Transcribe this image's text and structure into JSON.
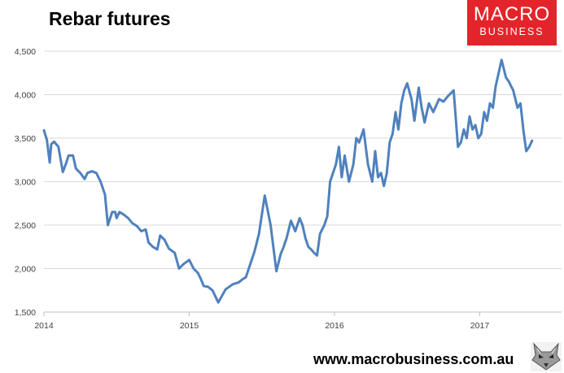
{
  "chart_data": {
    "type": "line",
    "title": "Rebar futures",
    "xlabel": "",
    "ylabel": "",
    "xlim": [
      2014,
      2017.4
    ],
    "ylim": [
      1500,
      4500
    ],
    "y_ticks": [
      1500,
      2000,
      2500,
      3000,
      3500,
      4000,
      4500
    ],
    "y_tick_labels": [
      "1,500",
      "2,000",
      "2,500",
      "3,000",
      "3,500",
      "4,000",
      "4,500"
    ],
    "x_ticks": [
      2014,
      2015,
      2016,
      2017
    ],
    "x_tick_labels": [
      "2014",
      "2015",
      "2016",
      "2017"
    ],
    "grid": true,
    "legend": "none",
    "series": [
      {
        "color": "#4f81bd",
        "x": [
          2014.0,
          2014.02,
          2014.04,
          2014.05,
          2014.07,
          2014.1,
          2014.13,
          2014.15,
          2014.17,
          2014.2,
          2014.22,
          2014.25,
          2014.28,
          2014.3,
          2014.33,
          2014.36,
          2014.39,
          2014.42,
          2014.44,
          2014.47,
          2014.49,
          2014.5,
          2014.52,
          2014.55,
          2014.58,
          2014.61,
          2014.64,
          2014.67,
          2014.7,
          2014.72,
          2014.75,
          2014.78,
          2014.8,
          2014.83,
          2014.86,
          2014.9,
          2014.93,
          2014.96,
          2015.0,
          2015.03,
          2015.06,
          2015.08,
          2015.1,
          2015.13,
          2015.16,
          2015.2,
          2015.25,
          2015.3,
          2015.34,
          2015.37,
          2015.39,
          2015.42,
          2015.45,
          2015.48,
          2015.52,
          2015.56,
          2015.6,
          2015.63,
          2015.65,
          2015.67,
          2015.7,
          2015.73,
          2015.76,
          2015.78,
          2015.8,
          2015.82,
          2015.84,
          2015.86,
          2015.88,
          2015.9,
          2015.93,
          2015.95,
          2015.97,
          2015.99,
          2016.01,
          2016.03,
          2016.05,
          2016.07,
          2016.1,
          2016.13,
          2016.15,
          2016.17,
          2016.2,
          2016.23,
          2016.26,
          2016.28,
          2016.3,
          2016.32,
          2016.34,
          2016.36,
          2016.38,
          2016.4,
          2016.42,
          2016.44,
          2016.46,
          2016.48,
          2016.5,
          2016.53,
          2016.55,
          2016.58,
          2016.6,
          2016.62,
          2016.65,
          2016.68,
          2016.72,
          2016.75,
          2016.78,
          2016.82,
          2016.85,
          2016.87,
          2016.89,
          2016.91,
          2016.93,
          2016.95,
          2016.97,
          2016.99,
          2017.01,
          2017.03,
          2017.05,
          2017.07,
          2017.09,
          2017.11,
          2017.13,
          2017.15,
          2017.18,
          2017.2,
          2017.23,
          2017.26,
          2017.28,
          2017.3,
          2017.32,
          2017.34,
          2017.36
        ],
        "values": [
          3590,
          3480,
          3220,
          3430,
          3460,
          3400,
          3110,
          3200,
          3300,
          3300,
          3150,
          3100,
          3030,
          3100,
          3120,
          3100,
          3000,
          2850,
          2500,
          2650,
          2650,
          2580,
          2650,
          2620,
          2580,
          2520,
          2490,
          2430,
          2450,
          2300,
          2250,
          2220,
          2380,
          2330,
          2230,
          2180,
          2000,
          2050,
          2100,
          2000,
          1950,
          1880,
          1800,
          1790,
          1750,
          1610,
          1760,
          1820,
          1840,
          1880,
          1900,
          2050,
          2200,
          2400,
          2840,
          2500,
          1970,
          2170,
          2250,
          2350,
          2550,
          2430,
          2580,
          2500,
          2350,
          2250,
          2220,
          2180,
          2150,
          2400,
          2500,
          2600,
          3000,
          3100,
          3200,
          3400,
          3050,
          3300,
          3000,
          3200,
          3500,
          3450,
          3600,
          3200,
          3000,
          3350,
          3050,
          3100,
          2950,
          3100,
          3450,
          3550,
          3800,
          3600,
          3900,
          4050,
          4130,
          3950,
          3700,
          4080,
          3850,
          3680,
          3900,
          3800,
          3950,
          3920,
          3980,
          4050,
          3400,
          3450,
          3600,
          3500,
          3750,
          3600,
          3650,
          3500,
          3550,
          3800,
          3700,
          3900,
          3850,
          4100,
          4250,
          4400,
          4200,
          4150,
          4050,
          3850,
          3900,
          3600,
          3350,
          3400,
          3470
        ]
      }
    ]
  },
  "logo": {
    "line1": "MACRO",
    "line2": "BUSINESS"
  },
  "footer": {
    "url": "www.macrobusiness.com.au"
  },
  "colors": {
    "line": "#4f81bd",
    "grid": "#d9d9d9",
    "logo_bg": "#e4242b"
  },
  "icons": {
    "footer_logo": "wolf-head-icon"
  }
}
